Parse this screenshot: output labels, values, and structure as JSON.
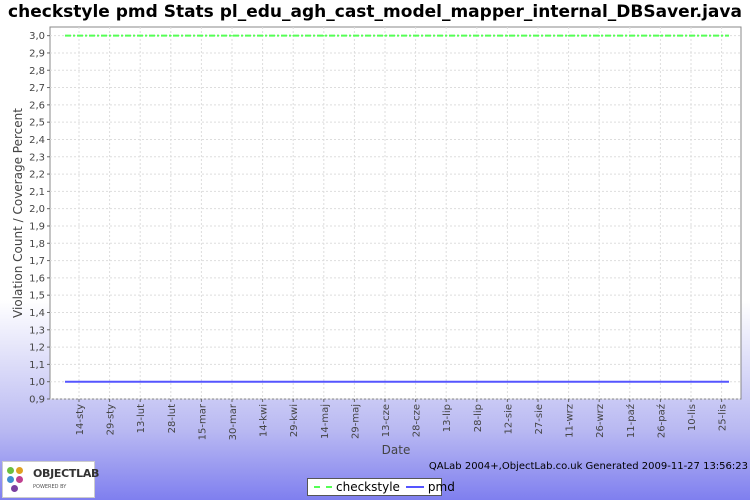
{
  "chart_data": {
    "type": "line",
    "title": "checkstyle pmd  Stats pl_edu_agh_cast_model_mapper_internal_DBSaver.java",
    "xlabel": "Date",
    "ylabel": "Violation Count / Coverage Percent",
    "ylim": [
      0.9,
      3.05
    ],
    "y_ticks": [
      "0,9",
      "1,0",
      "1,1",
      "1,2",
      "1,3",
      "1,4",
      "1,5",
      "1,6",
      "1,7",
      "1,8",
      "1,9",
      "2,0",
      "2,1",
      "2,2",
      "2,3",
      "2,4",
      "2,5",
      "2,6",
      "2,7",
      "2,8",
      "2,9",
      "3,0"
    ],
    "categories": [
      "14-sty",
      "29-sty",
      "13-lut",
      "28-lut",
      "15-mar",
      "30-mar",
      "14-kwi",
      "29-kwi",
      "14-maj",
      "29-maj",
      "13-cze",
      "28-cze",
      "13-lip",
      "28-lip",
      "12-sie",
      "27-sie",
      "11-wrz",
      "26-wrz",
      "11-paź",
      "26-paź",
      "10-lis",
      "25-lis"
    ],
    "series": [
      {
        "name": "checkstyle",
        "color": "#55ff55",
        "values": [
          3,
          3,
          3,
          3,
          3,
          3,
          3,
          3,
          3,
          3,
          3,
          3,
          3,
          3,
          3,
          3,
          3,
          3,
          3,
          3,
          3,
          3
        ]
      },
      {
        "name": "pmd",
        "color": "#5555ff",
        "values": [
          1,
          1,
          1,
          1,
          1,
          1,
          1,
          1,
          1,
          1,
          1,
          1,
          1,
          1,
          1,
          1,
          1,
          1,
          1,
          1,
          1,
          1
        ]
      }
    ],
    "grid": true,
    "legend": "bottom-center"
  },
  "footer": {
    "text": "QALab 2004+,ObjectLab.co.uk Generated 2009-11-27 13:56:23"
  },
  "logo": {
    "name": "OBJECTLAB",
    "tagline": "POWERED BY"
  }
}
